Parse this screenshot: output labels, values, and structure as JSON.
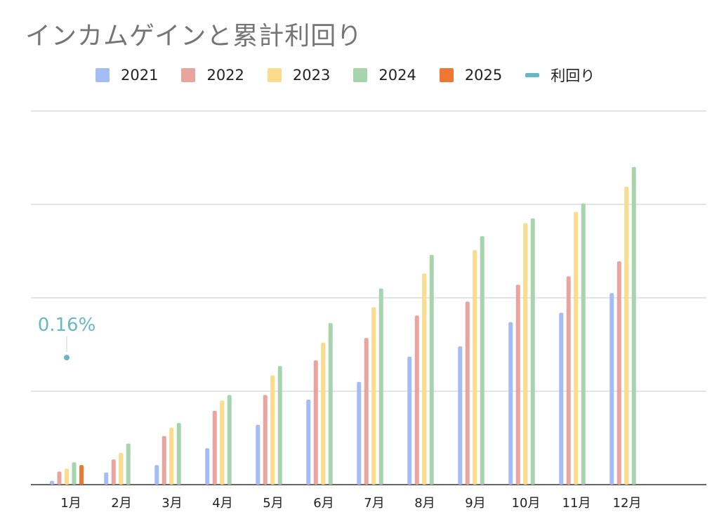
{
  "chart_data": {
    "type": "bar",
    "title": "インカムゲインと累計利回り",
    "legend_position": "top",
    "grid": true,
    "y_axis_labels_shown": false,
    "categories": [
      "1月",
      "2月",
      "3月",
      "4月",
      "5月",
      "6月",
      "7月",
      "8月",
      "9月",
      "10月",
      "11月",
      "12月"
    ],
    "ylim": [
      0,
      4
    ],
    "series": [
      {
        "name": "2021",
        "color": "#a4bdf2",
        "values": [
          0.04,
          0.13,
          0.21,
          0.39,
          0.64,
          0.91,
          1.1,
          1.37,
          1.48,
          1.74,
          1.84,
          2.05
        ]
      },
      {
        "name": "2022",
        "color": "#e8a59e",
        "values": [
          0.14,
          0.27,
          0.52,
          0.79,
          0.96,
          1.33,
          1.57,
          1.81,
          1.96,
          2.14,
          2.23,
          2.39
        ]
      },
      {
        "name": "2023",
        "color": "#fadc8c",
        "values": [
          0.17,
          0.34,
          0.61,
          0.9,
          1.17,
          1.52,
          1.9,
          2.26,
          2.51,
          2.8,
          2.92,
          3.19
        ]
      },
      {
        "name": "2024",
        "color": "#a6d5ad",
        "values": [
          0.24,
          0.44,
          0.66,
          0.96,
          1.27,
          1.73,
          2.1,
          2.46,
          2.66,
          2.85,
          3.01,
          3.4
        ]
      },
      {
        "name": "2025",
        "color": "#ee7733",
        "values": [
          0.21,
          null,
          null,
          null,
          null,
          null,
          null,
          null,
          null,
          null,
          null,
          null
        ]
      }
    ],
    "line_series": {
      "name": "利回り",
      "color": "#66b9c4",
      "values": [
        0.16,
        null,
        null,
        null,
        null,
        null,
        null,
        null,
        null,
        null,
        null,
        null
      ],
      "point_labels": [
        "0.16%",
        null,
        null,
        null,
        null,
        null,
        null,
        null,
        null,
        null,
        null,
        null
      ]
    }
  }
}
